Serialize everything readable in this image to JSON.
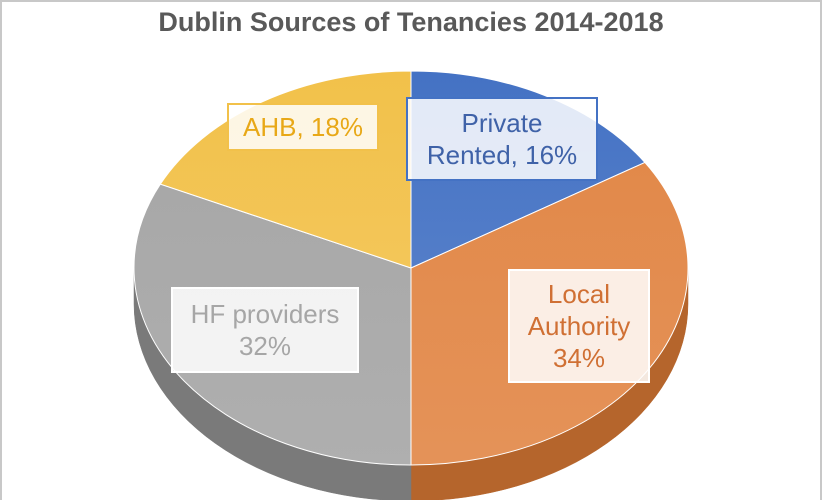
{
  "chart_data": {
    "type": "pie",
    "title": "Dublin Sources of Tenancies 2014-2018",
    "slices": [
      {
        "name": "Private Rented",
        "value": 16,
        "label_lines": [
          "Private",
          "Rented, 16%"
        ],
        "color": "#4472c4",
        "side": "#2f5597",
        "label_color": "#3f62a8",
        "label_border": "#4472c4"
      },
      {
        "name": "Local Authority",
        "value": 34,
        "label_lines": [
          "Local",
          "Authority",
          "34%"
        ],
        "color": "#e2894a",
        "side": "#b5652c",
        "label_color": "#d07034",
        "label_border": "#ffffff"
      },
      {
        "name": "HF providers",
        "value": 32,
        "label_lines": [
          "HF providers",
          "32%"
        ],
        "color": "#a8a8a8",
        "side": "#7a7a7a",
        "label_color": "#a6a6a6",
        "label_border": "#ffffff"
      },
      {
        "name": "AHB",
        "value": 18,
        "label_lines": [
          "AHB, 18%"
        ],
        "color": "#f2c14a",
        "side": "#c99a2a",
        "label_color": "#e8a817",
        "label_border": "#f2c14a"
      }
    ]
  }
}
